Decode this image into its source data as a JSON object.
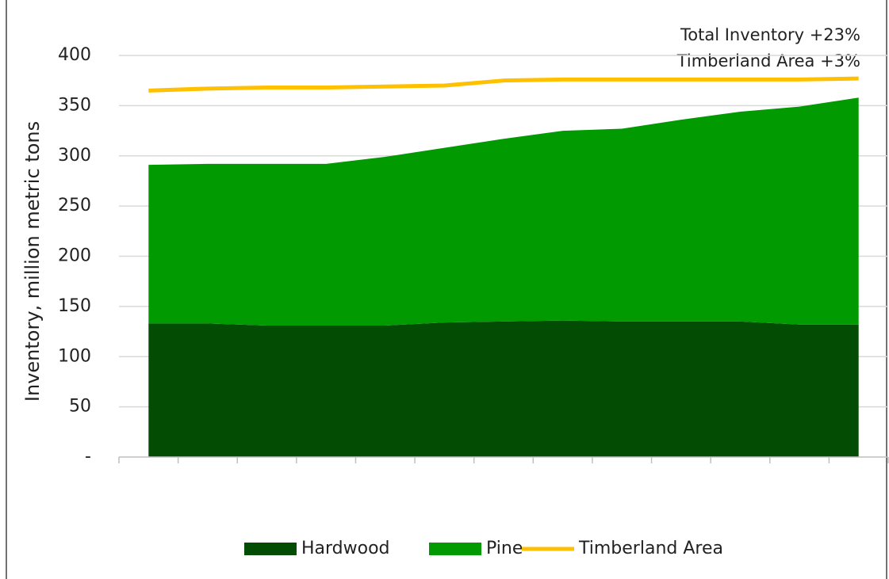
{
  "chart_data": {
    "type": "stacked-area-line",
    "y_label": "Inventory, million metric tons",
    "annotations": [
      "Total Inventory +23%",
      "Timberland Area +3%"
    ],
    "categories": [
      null,
      null,
      null,
      null,
      null,
      null,
      null,
      null,
      null,
      null,
      null,
      null,
      null
    ],
    "series": [
      {
        "name": "Hardwood",
        "color": "#034c03",
        "kind": "area",
        "values": [
          133,
          133,
          131,
          131,
          131,
          134,
          135,
          136,
          135,
          135,
          135,
          132,
          132
        ]
      },
      {
        "name": "Pine",
        "color": "#019a01",
        "kind": "area",
        "values": [
          158,
          159,
          161,
          161,
          168,
          174,
          182,
          189,
          192,
          201,
          209,
          217,
          226
        ]
      },
      {
        "name": "Timberland Area",
        "color": "#ffc000",
        "kind": "line",
        "values": [
          365,
          367,
          368,
          368,
          369,
          370,
          375,
          376,
          376,
          376,
          376,
          376,
          377
        ]
      }
    ],
    "ylim": [
      0,
      400
    ],
    "yticks": [
      {
        "value": 0,
        "label": "-"
      },
      50,
      100,
      150,
      200,
      250,
      300,
      350,
      400
    ],
    "grid": true
  }
}
